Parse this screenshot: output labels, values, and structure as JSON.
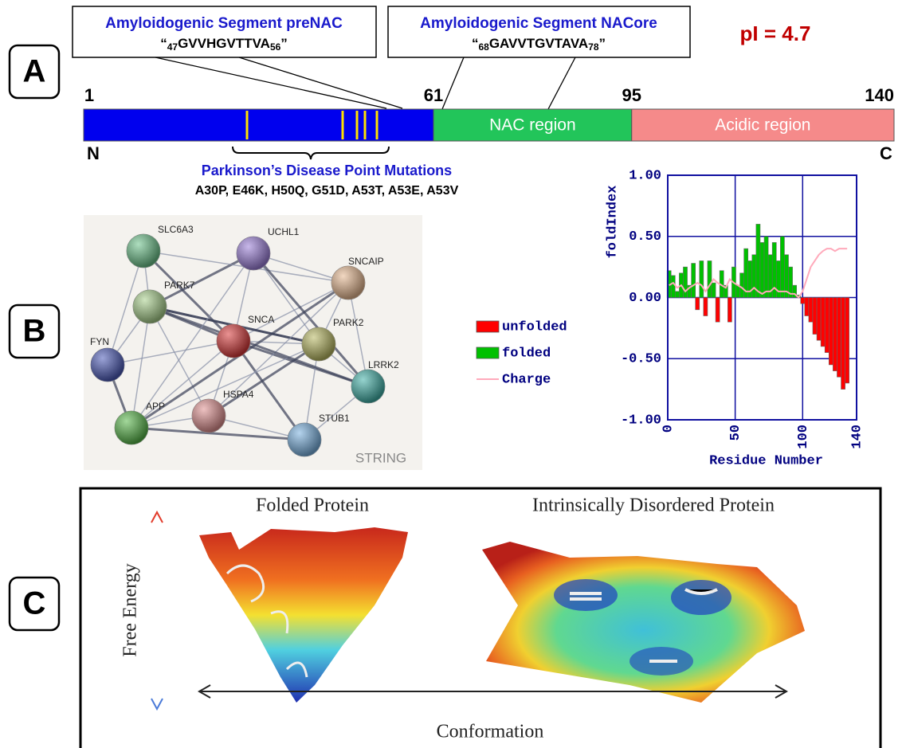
{
  "panel_a": {
    "label": "A",
    "segments": [
      {
        "title": "Amyloidogenic Segment preNAC",
        "open": "“",
        "start": "47",
        "sequence": "GVVHGVTTVA",
        "end": "56",
        "close": "”"
      },
      {
        "title": "Amyloidogenic Segment NACore",
        "open": "“",
        "start": "68",
        "sequence": "GAVVTGVTAVA",
        "end": "78",
        "close": "”"
      }
    ],
    "pi": "pI = 4.7",
    "positions": [
      1,
      61,
      95,
      140
    ],
    "regions": [
      {
        "label": null,
        "color": "#0000ee"
      },
      {
        "label": "NAC region",
        "color": "#22c55a"
      },
      {
        "label": "Acidic region",
        "color": "#f58a8a"
      }
    ],
    "n_terminus": "N",
    "c_terminus": "C",
    "mutations_title": "Parkinson’s Disease Point Mutations",
    "mutations": "A30P, E46K, H50Q, G51D, A53T, A53E, A53V"
  },
  "panel_b": {
    "label": "B",
    "network_nodes": [
      {
        "label": "SLC6A3",
        "color": "#6cc28a"
      },
      {
        "label": "UCHL1",
        "color": "#9a7ed8"
      },
      {
        "label": "SNCAIP",
        "color": "#e8b890"
      },
      {
        "label": "PARK7",
        "color": "#a8d08a"
      },
      {
        "label": "SNCA",
        "color": "#d83838"
      },
      {
        "label": "PARK2",
        "color": "#b8b860"
      },
      {
        "label": "FYN",
        "color": "#4a5ab8"
      },
      {
        "label": "LRRK2",
        "color": "#40b0a8"
      },
      {
        "label": "APP",
        "color": "#58b848"
      },
      {
        "label": "HSPA4",
        "color": "#e09090"
      },
      {
        "label": "STUB1",
        "color": "#78b0e0"
      }
    ],
    "network_source": "STRING"
  },
  "chart_data": {
    "type": "bar",
    "x": [
      1,
      4,
      7,
      10,
      13,
      16,
      19,
      22,
      25,
      28,
      31,
      34,
      37,
      40,
      43,
      46,
      49,
      52,
      55,
      58,
      61,
      64,
      67,
      70,
      73,
      76,
      79,
      82,
      85,
      88,
      91,
      94,
      97,
      100,
      103,
      106,
      109,
      112,
      115,
      118,
      121,
      124,
      127,
      130,
      133
    ],
    "values": [
      0.22,
      0.18,
      0.05,
      0.2,
      0.25,
      0.1,
      0.28,
      -0.1,
      0.3,
      -0.15,
      0.3,
      0.12,
      -0.2,
      0.22,
      0.1,
      -0.2,
      0.25,
      0.1,
      0.2,
      0.4,
      0.3,
      0.35,
      0.6,
      0.45,
      0.5,
      0.35,
      0.45,
      0.3,
      0.5,
      0.35,
      0.25,
      0.1,
      0.02,
      -0.05,
      -0.15,
      -0.2,
      -0.3,
      -0.35,
      -0.4,
      -0.45,
      -0.55,
      -0.6,
      -0.65,
      -0.75,
      -0.7
    ],
    "charge": [
      0.1,
      0.12,
      0.08,
      0.1,
      0.05,
      0.08,
      0.1,
      0.12,
      0.1,
      0.05,
      0.1,
      0.15,
      0.12,
      0.1,
      0.08,
      0.15,
      0.12,
      0.1,
      0.08,
      0.05,
      0.05,
      0.08,
      0.05,
      0.03,
      0.05,
      0.05,
      0.08,
      0.05,
      0.05,
      0.05,
      0.03,
      0.03,
      0,
      0.05,
      0.15,
      0.25,
      0.3,
      0.35,
      0.38,
      0.4,
      0.4,
      0.38,
      0.4,
      0.4,
      0.4
    ],
    "legend": [
      {
        "label": "unfolded",
        "color": "#ff0000"
      },
      {
        "label": "folded",
        "color": "#00c000"
      },
      {
        "label": "Charge",
        "color": "#ffaabb"
      }
    ],
    "xlabel": "Residue Number",
    "ylabel": "foldIndex",
    "xlim": [
      0,
      140
    ],
    "xticks": [
      0,
      50,
      100,
      140
    ],
    "ylim": [
      -1,
      1
    ],
    "yticks": [
      {
        "value": -1,
        "label": "-1.00"
      },
      {
        "value": -0.5,
        "label": "-0.50"
      },
      {
        "value": 0,
        "label": "0.00"
      },
      {
        "value": 0.5,
        "label": "0.50"
      },
      {
        "value": 1,
        "label": "1.00"
      }
    ],
    "grid": true
  },
  "panel_c": {
    "label": "C",
    "folded_title": "Folded Protein",
    "idp_title": "Intrinsically Disordered Protein",
    "y_label": "Free Energy",
    "x_label": "Conformation"
  }
}
